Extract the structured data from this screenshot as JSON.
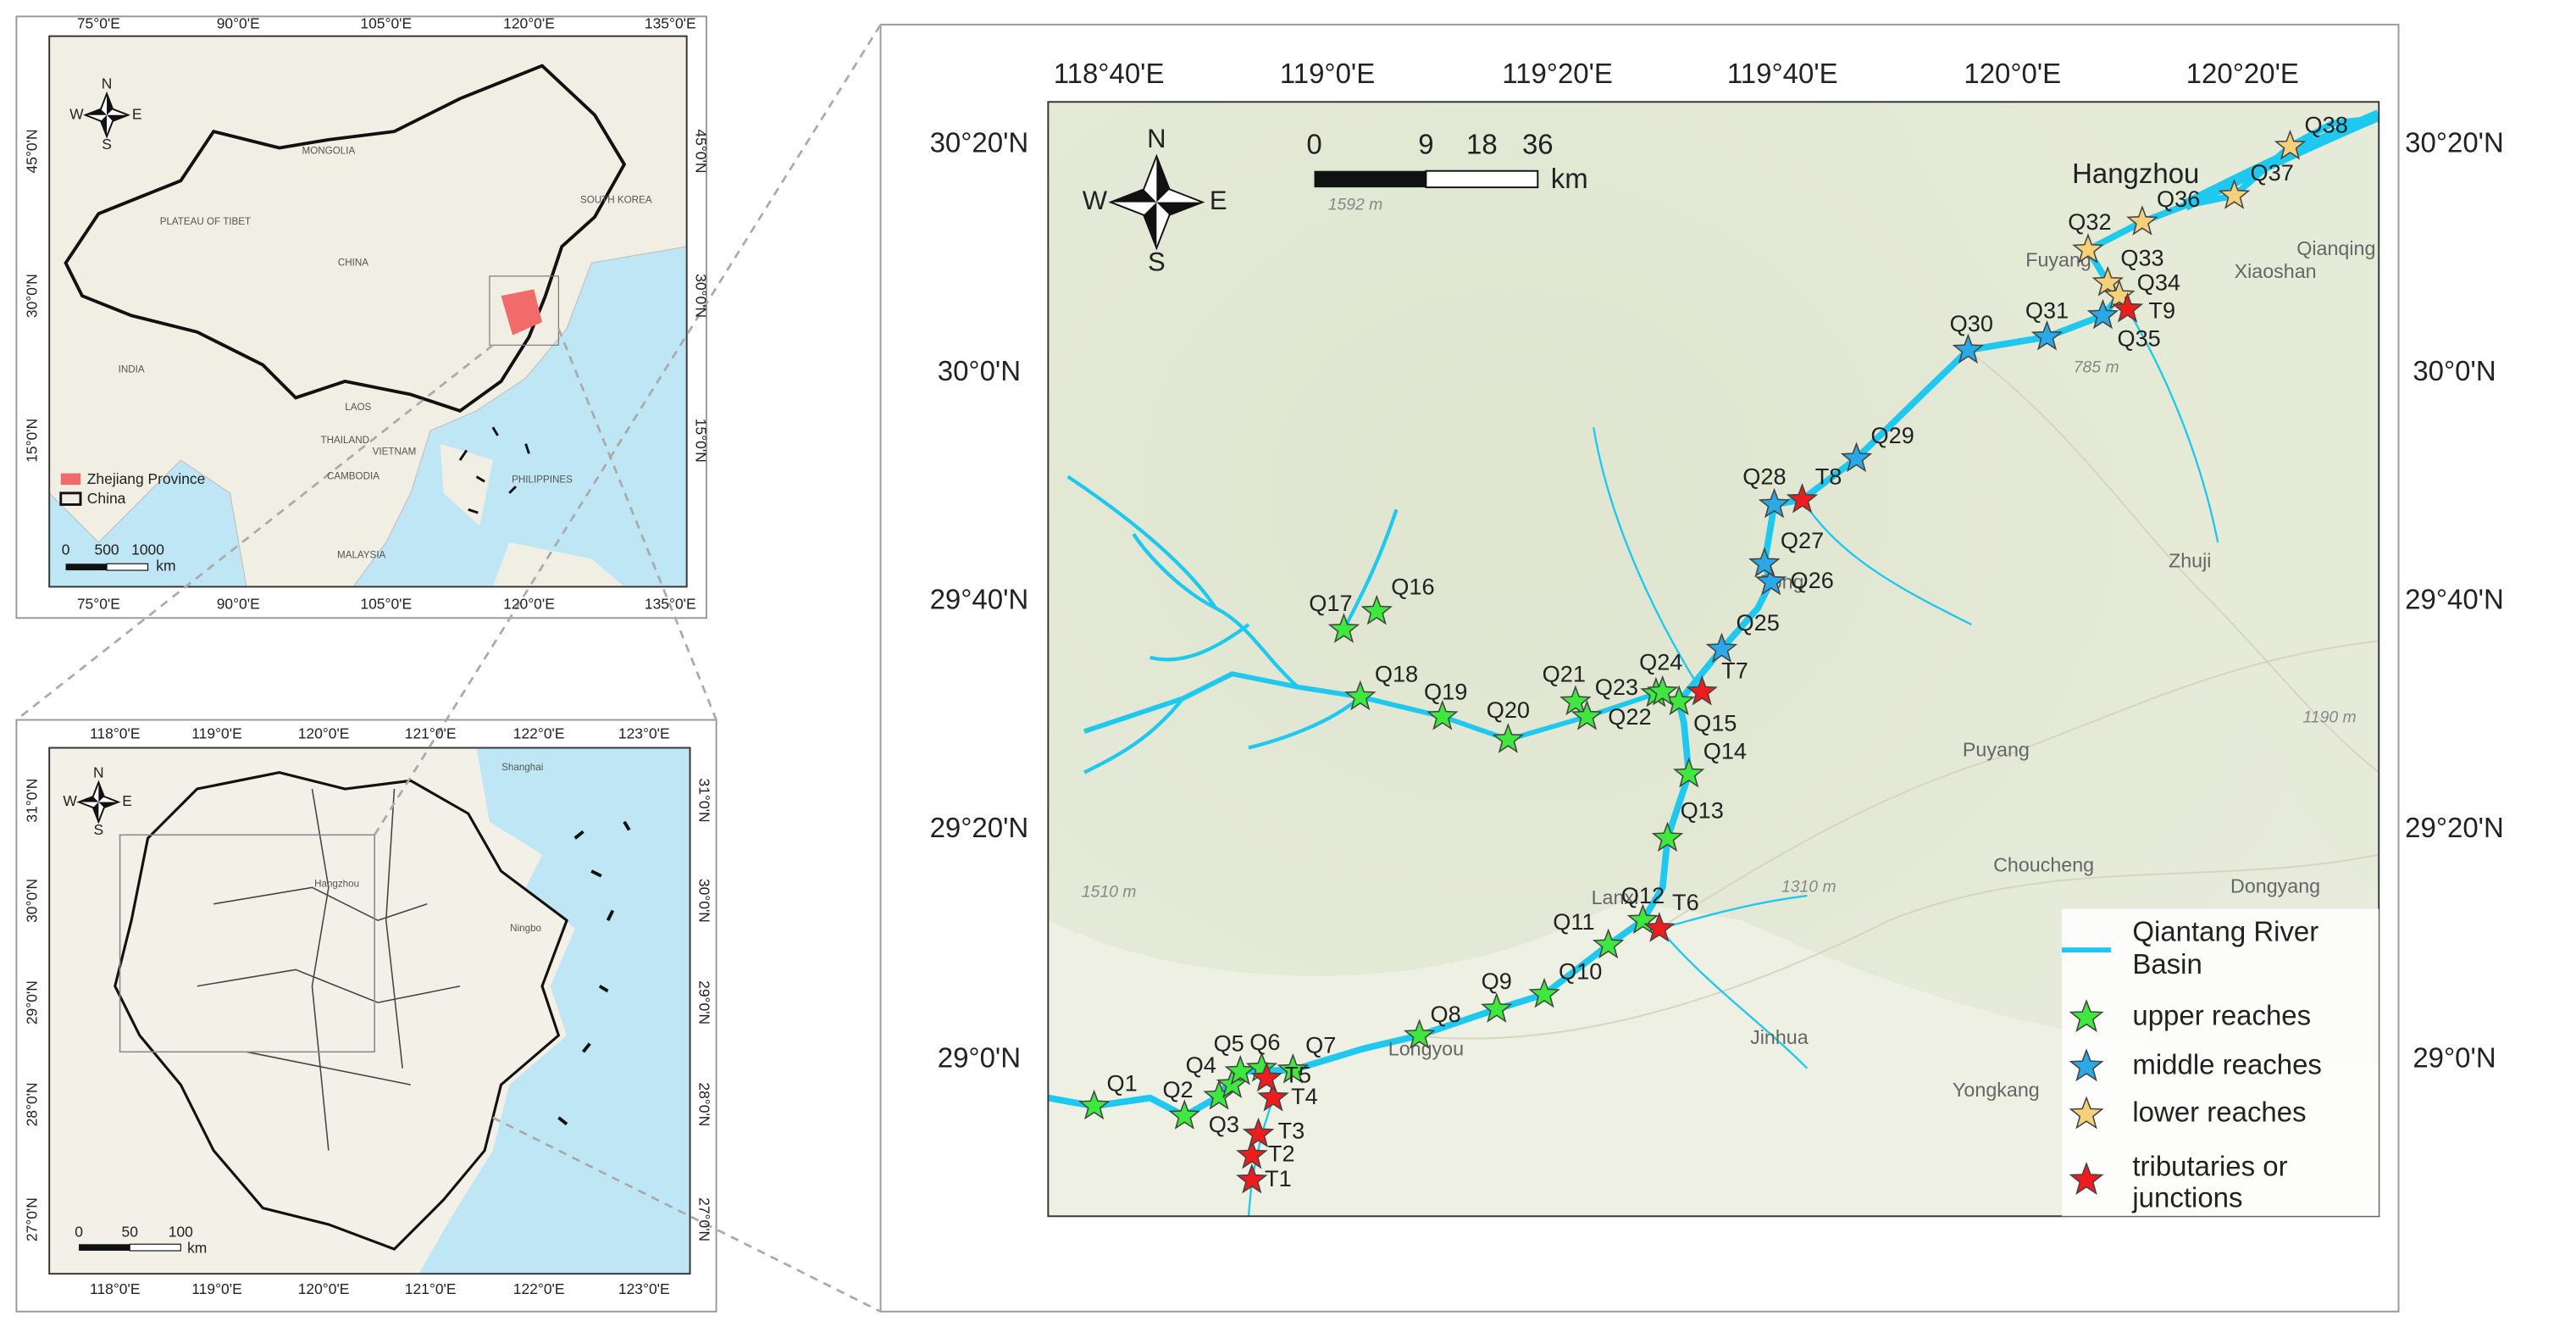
{
  "china_inset": {
    "lon_labels": [
      "75°0'E",
      "90°0'E",
      "105°0'E",
      "120°0'E",
      "135°0'E"
    ],
    "lat_labels": [
      "45°0'N",
      "30°0'N",
      "15°0'N"
    ],
    "compass": {
      "n": "N",
      "s": "S",
      "w": "W",
      "e": "E"
    },
    "places": [
      "MONGOLIA",
      "CHINA",
      "PLATEAU OF TIBET",
      "INDIA",
      "SOUTH KOREA",
      "THAILAND",
      "LAOS",
      "VIETNAM",
      "CAMBODIA",
      "PHILIPPINES",
      "MALAYSIA"
    ],
    "legend": [
      "Zhejiang Province",
      "China"
    ],
    "scale": [
      "0",
      "500",
      "1000",
      "km"
    ]
  },
  "zhejiang_inset": {
    "lon_labels": [
      "118°0'E",
      "119°0'E",
      "120°0'E",
      "121°0'E",
      "122°0'E",
      "123°0'E"
    ],
    "lat_labels": [
      "31°0'N",
      "30°0'N",
      "29°0'N",
      "28°0'N",
      "27°0'N"
    ],
    "compass": {
      "n": "N",
      "s": "S",
      "w": "W",
      "e": "E"
    },
    "places": [
      "Shanghai",
      "Hangzhou",
      "Ningbo"
    ],
    "scale": [
      "0",
      "50",
      "100",
      "km"
    ]
  },
  "main_map": {
    "lon_labels": [
      "118°40'E",
      "119°0'E",
      "119°20'E",
      "119°40'E",
      "120°0'E",
      "120°20'E"
    ],
    "lat_labels": [
      "30°20'N",
      "30°0'N",
      "29°40'N",
      "29°20'N",
      "29°0'N"
    ],
    "compass": {
      "n": "N",
      "s": "S",
      "w": "W",
      "e": "E"
    },
    "scale": [
      "0",
      "9",
      "18",
      "36",
      "km"
    ],
    "places": [
      "Hangzhou",
      "Qianqing",
      "Xiaoshan",
      "Fuyang",
      "Zhuji",
      "Puyang",
      "Choucheng",
      "Dongyang",
      "Jinhua",
      "Yongkang",
      "Longyou",
      "Lanxi",
      "Tong"
    ],
    "elevations": [
      "1592 m",
      "785 m",
      "1190 m",
      "1310 m",
      "1510 m"
    ],
    "legend": {
      "river": {
        "label": [
          "Qiantang River",
          "Basin"
        ],
        "color": "#1ec8ee"
      },
      "groups": [
        {
          "label": [
            "upper reaches"
          ],
          "color": "#3ee83e",
          "stations": [
            "Q1",
            "Q2",
            "Q3",
            "Q4",
            "Q5",
            "Q6",
            "Q7",
            "Q8",
            "Q9",
            "Q10",
            "Q11",
            "Q12",
            "Q13",
            "Q14",
            "Q15",
            "Q16",
            "Q17",
            "Q18",
            "Q19",
            "Q20",
            "Q21",
            "Q22",
            "Q23",
            "Q24"
          ]
        },
        {
          "label": [
            "middle reaches"
          ],
          "color": "#2aa8e8",
          "stations": [
            "Q25",
            "Q26",
            "Q27",
            "Q28",
            "Q29",
            "Q30",
            "Q31",
            "Q35"
          ]
        },
        {
          "label": [
            "lower reaches"
          ],
          "color": "#f7d07a",
          "stations": [
            "Q32",
            "Q33",
            "Q34",
            "Q36",
            "Q37",
            "Q38"
          ]
        },
        {
          "label": [
            "tributaries or",
            "junctions"
          ],
          "color": "#ee1c1c",
          "stations": [
            "T1",
            "T2",
            "T3",
            "T4",
            "T5",
            "T6",
            "T7",
            "T8",
            "T9"
          ]
        }
      ]
    }
  }
}
